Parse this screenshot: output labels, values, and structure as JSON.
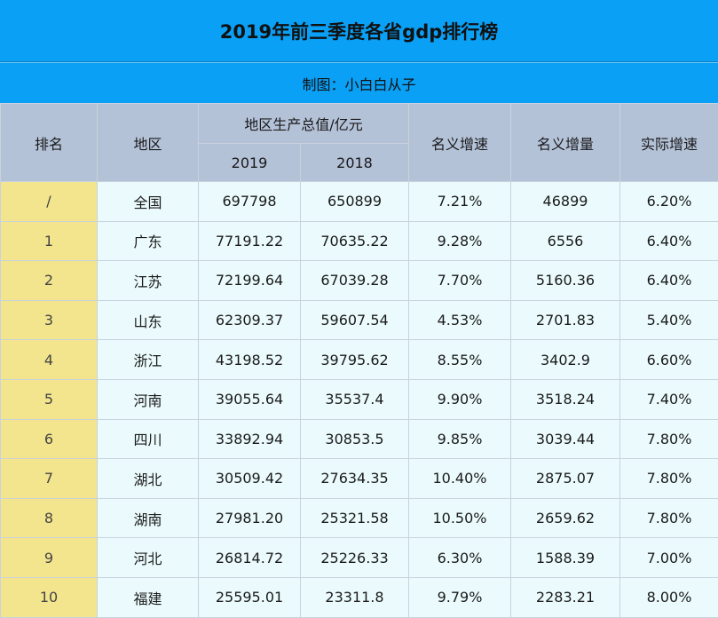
{
  "title": "2019年前三季度各省gdp排行榜",
  "subtitle": "制图：小白白从子",
  "headers": {
    "rank": "排名",
    "region": "地区",
    "gdp_group": "地区生产总值/亿元",
    "y2019": "2019",
    "y2018": "2018",
    "nominal_rate": "名义增速",
    "nominal_increase": "名义增量",
    "real_rate": "实际增速"
  },
  "rows": [
    {
      "rank": "/",
      "region": "全国",
      "v2019": "697798",
      "v2018": "650899",
      "nominal_rate": "7.21%",
      "nominal_increase": "46899",
      "real_rate": "6.20%"
    },
    {
      "rank": "1",
      "region": "广东",
      "v2019": "77191.22",
      "v2018": "70635.22",
      "nominal_rate": "9.28%",
      "nominal_increase": "6556",
      "real_rate": "6.40%"
    },
    {
      "rank": "2",
      "region": "江苏",
      "v2019": "72199.64",
      "v2018": "67039.28",
      "nominal_rate": "7.70%",
      "nominal_increase": "5160.36",
      "real_rate": "6.40%"
    },
    {
      "rank": "3",
      "region": "山东",
      "v2019": "62309.37",
      "v2018": "59607.54",
      "nominal_rate": "4.53%",
      "nominal_increase": "2701.83",
      "real_rate": "5.40%"
    },
    {
      "rank": "4",
      "region": "浙江",
      "v2019": "43198.52",
      "v2018": "39795.62",
      "nominal_rate": "8.55%",
      "nominal_increase": "3402.9",
      "real_rate": "6.60%"
    },
    {
      "rank": "5",
      "region": "河南",
      "v2019": "39055.64",
      "v2018": "35537.4",
      "nominal_rate": "9.90%",
      "nominal_increase": "3518.24",
      "real_rate": "7.40%"
    },
    {
      "rank": "6",
      "region": "四川",
      "v2019": "33892.94",
      "v2018": "30853.5",
      "nominal_rate": "9.85%",
      "nominal_increase": "3039.44",
      "real_rate": "7.80%"
    },
    {
      "rank": "7",
      "region": "湖北",
      "v2019": "30509.42",
      "v2018": "27634.35",
      "nominal_rate": "10.40%",
      "nominal_increase": "2875.07",
      "real_rate": "7.80%"
    },
    {
      "rank": "8",
      "region": "湖南",
      "v2019": "27981.20",
      "v2018": "25321.58",
      "nominal_rate": "10.50%",
      "nominal_increase": "2659.62",
      "real_rate": "7.80%"
    },
    {
      "rank": "9",
      "region": "河北",
      "v2019": "26814.72",
      "v2018": "25226.33",
      "nominal_rate": "6.30%",
      "nominal_increase": "1588.39",
      "real_rate": "7.00%"
    },
    {
      "rank": "10",
      "region": "福建",
      "v2019": "25595.01",
      "v2018": "23311.8",
      "nominal_rate": "9.79%",
      "nominal_increase": "2283.21",
      "real_rate": "8.00%"
    }
  ],
  "colors": {
    "title_bg": "#0aa0f5",
    "header_bg": "#b4c2d8",
    "rank_bg": "#f3e48e",
    "cell_bg": "#ebfbfd"
  }
}
